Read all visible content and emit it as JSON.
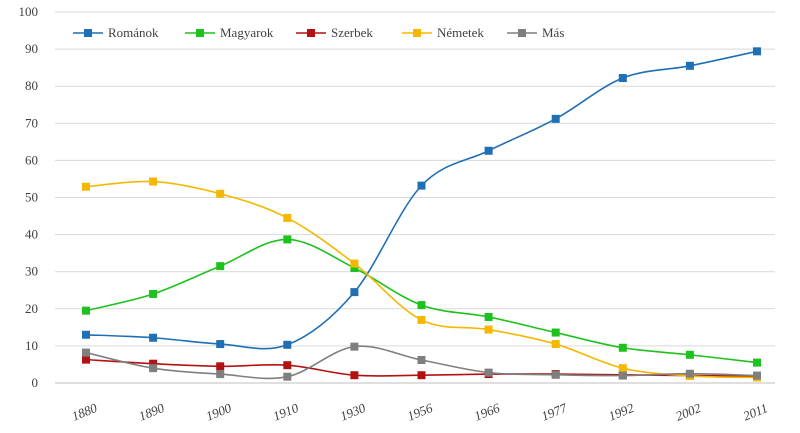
{
  "chart_data": {
    "type": "line",
    "title": "",
    "xlabel": "",
    "ylabel": "",
    "ylim": [
      0,
      100
    ],
    "yticks": [
      0,
      10,
      20,
      30,
      40,
      50,
      60,
      70,
      80,
      90,
      100
    ],
    "grid": true,
    "legend_position": "top-left",
    "categories": [
      "1880",
      "1890",
      "1900",
      "1910",
      "1930",
      "1956",
      "1966",
      "1977",
      "1992",
      "2002",
      "2011"
    ],
    "series": [
      {
        "name": "Románok",
        "color": "#1f6fb5",
        "values": [
          13.0,
          12.2,
          10.5,
          10.3,
          24.5,
          53.2,
          62.6,
          71.2,
          82.2,
          85.5,
          89.4
        ]
      },
      {
        "name": "Magyarok",
        "color": "#1ec21e",
        "values": [
          19.5,
          24.0,
          31.5,
          38.7,
          31.0,
          21.0,
          17.8,
          13.6,
          9.5,
          7.6,
          5.5
        ]
      },
      {
        "name": "Szerbek",
        "color": "#b31212",
        "values": [
          6.3,
          5.2,
          4.5,
          4.8,
          2.1,
          2.1,
          2.4,
          2.4,
          2.2,
          2.0,
          1.8
        ]
      },
      {
        "name": "Németek",
        "color": "#f5b800",
        "values": [
          52.9,
          54.3,
          51.0,
          44.5,
          32.2,
          17.0,
          14.4,
          10.5,
          4.0,
          1.9,
          1.5
        ]
      },
      {
        "name": "Más",
        "color": "#7f7f7f",
        "values": [
          8.2,
          4.0,
          2.4,
          1.7,
          9.8,
          6.2,
          2.8,
          2.2,
          2.0,
          2.5,
          2.0
        ]
      }
    ]
  }
}
